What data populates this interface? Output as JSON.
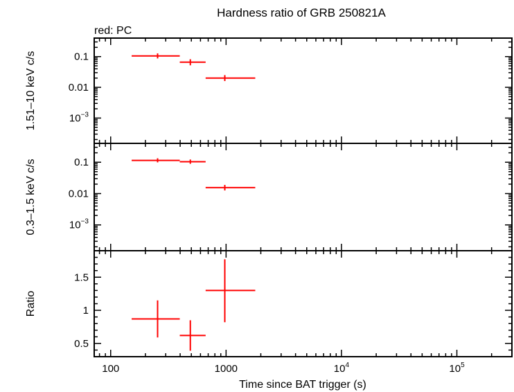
{
  "chart_data": {
    "type": "scatter",
    "title": "Hardness ratio of GRB 250821A",
    "legend_note": "red: PC",
    "xlabel": "Time since BAT trigger (s)",
    "xscale": "log",
    "xlim": [
      72,
      300000
    ],
    "x_ticks": [
      {
        "value": 100,
        "label": "100",
        "sup": ""
      },
      {
        "value": 1000,
        "label": "1000",
        "sup": ""
      },
      {
        "value": 10000,
        "label": "10",
        "sup": "4"
      },
      {
        "value": 100000,
        "label": "10",
        "sup": "5"
      }
    ],
    "color": "#ff0000",
    "panels": [
      {
        "name": "hard-band",
        "ylabel": "1.51–10 keV c/s",
        "yscale": "log",
        "ylim": [
          0.00015,
          0.4
        ],
        "y_ticks": [
          {
            "value": 0.1,
            "label": "0.1",
            "sup": ""
          },
          {
            "value": 0.01,
            "label": "0.01",
            "sup": ""
          },
          {
            "value": 0.001,
            "label": "10",
            "sup": "−3"
          }
        ],
        "points": [
          {
            "x": 255,
            "xlo": 152,
            "xhi": 397,
            "y": 0.105,
            "ylo": 0.087,
            "yhi": 0.127
          },
          {
            "x": 490,
            "xlo": 397,
            "xhi": 665,
            "y": 0.066,
            "ylo": 0.052,
            "yhi": 0.082
          },
          {
            "x": 975,
            "xlo": 665,
            "xhi": 1790,
            "y": 0.02,
            "ylo": 0.016,
            "yhi": 0.025
          }
        ]
      },
      {
        "name": "soft-band",
        "ylabel": "0.3–1.5 keV c/s",
        "yscale": "log",
        "ylim": [
          0.00015,
          0.4
        ],
        "y_ticks": [
          {
            "value": 0.1,
            "label": "0.1",
            "sup": ""
          },
          {
            "value": 0.01,
            "label": "0.01",
            "sup": ""
          },
          {
            "value": 0.001,
            "label": "10",
            "sup": "−3"
          }
        ],
        "points": [
          {
            "x": 255,
            "xlo": 152,
            "xhi": 397,
            "y": 0.114,
            "ylo": 0.099,
            "yhi": 0.134
          },
          {
            "x": 490,
            "xlo": 397,
            "xhi": 665,
            "y": 0.104,
            "ylo": 0.089,
            "yhi": 0.122
          },
          {
            "x": 975,
            "xlo": 665,
            "xhi": 1790,
            "y": 0.0155,
            "ylo": 0.0126,
            "yhi": 0.0189
          }
        ]
      },
      {
        "name": "ratio",
        "ylabel": "Ratio",
        "yscale": "linear",
        "ylim": [
          0.3,
          1.9
        ],
        "y_ticks": [
          {
            "value": 0.5,
            "label": "0.5",
            "sup": ""
          },
          {
            "value": 1,
            "label": "1",
            "sup": ""
          },
          {
            "value": 1.5,
            "label": "1.5",
            "sup": ""
          }
        ],
        "y_minor_step": 0.1,
        "points": [
          {
            "x": 255,
            "xlo": 152,
            "xhi": 397,
            "y": 0.87,
            "ylo": 0.59,
            "yhi": 1.15
          },
          {
            "x": 490,
            "xlo": 397,
            "xhi": 665,
            "y": 0.62,
            "ylo": 0.39,
            "yhi": 0.85
          },
          {
            "x": 975,
            "xlo": 665,
            "xhi": 1790,
            "y": 1.3,
            "ylo": 0.82,
            "yhi": 1.77
          }
        ]
      }
    ]
  }
}
